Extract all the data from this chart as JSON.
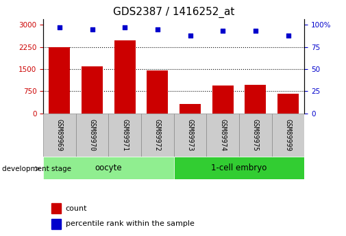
{
  "title": "GDS2387 / 1416252_at",
  "samples": [
    "GSM89969",
    "GSM89970",
    "GSM89971",
    "GSM89972",
    "GSM89973",
    "GSM89974",
    "GSM89975",
    "GSM89999"
  ],
  "counts": [
    2250,
    1580,
    2470,
    1460,
    320,
    930,
    960,
    660
  ],
  "percentile_ranks": [
    97,
    95,
    97,
    95,
    88,
    93,
    93,
    88
  ],
  "groups": [
    {
      "label": "oocyte",
      "indices": [
        0,
        1,
        2,
        3
      ],
      "color": "#90EE90"
    },
    {
      "label": "1-cell embryo",
      "indices": [
        4,
        5,
        6,
        7
      ],
      "color": "#32CD32"
    }
  ],
  "bar_color": "#CC0000",
  "dot_color": "#0000CC",
  "left_yticks": [
    0,
    750,
    1500,
    2250,
    3000
  ],
  "left_ylim": [
    0,
    3200
  ],
  "right_yticks": [
    0,
    25,
    50,
    75,
    100
  ],
  "right_ylim": [
    0,
    106.67
  ],
  "grid_values": [
    750,
    1500,
    2250
  ],
  "dev_stage_label": "development stage",
  "legend_count_label": "count",
  "legend_pct_label": "percentile rank within the sample",
  "title_fontsize": 11,
  "tick_fontsize": 7.5,
  "sample_tick_fontsize": 7,
  "left_tick_color": "#CC0000",
  "right_tick_color": "#0000CC",
  "background_color": "#ffffff",
  "gray_box_color": "#cccccc",
  "oocyte_color": "#90EE90",
  "embryo_color": "#32CD32"
}
